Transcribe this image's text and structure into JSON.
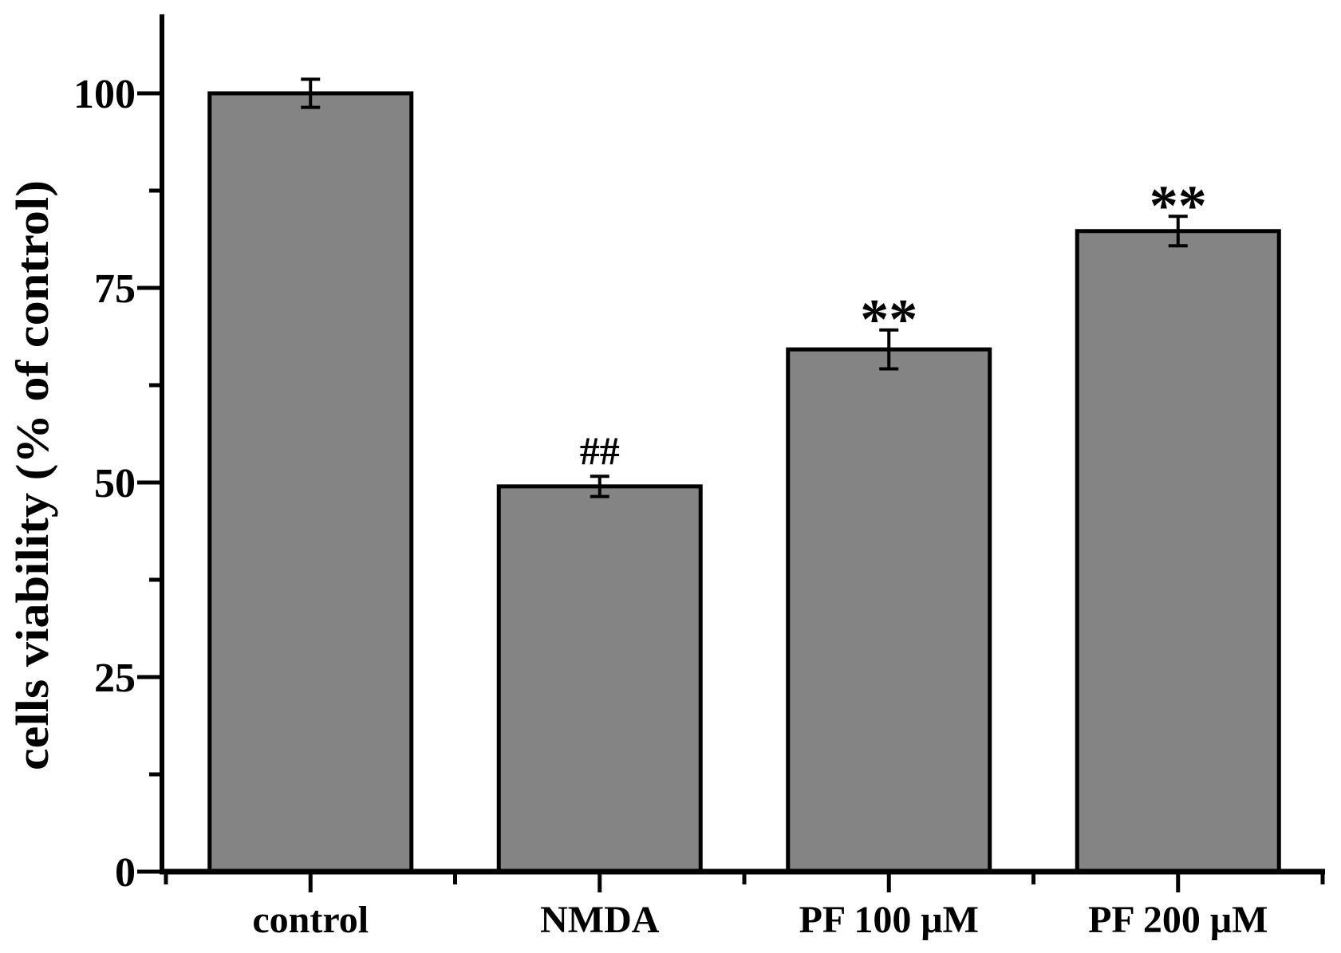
{
  "chart_data": {
    "type": "bar",
    "title": "",
    "xlabel": "",
    "ylabel": "cells viability (% of control)",
    "ylim": [
      0,
      110
    ],
    "yticks_major": [
      0,
      25,
      50,
      75,
      100
    ],
    "yticks_minor": [
      12.5,
      37.5,
      62.5,
      87.5
    ],
    "grid": "off",
    "legend": "none",
    "categories": [
      "control",
      "NMDA",
      "PF 100 μM",
      "PF 200 μM"
    ],
    "series": [
      {
        "name": "cells viability (% of control)",
        "values": [
          100,
          49.5,
          67.1,
          82.3
        ],
        "errors": [
          1.8,
          1.3,
          2.5,
          1.9
        ]
      }
    ],
    "annotations": [
      {
        "category": "control",
        "text": ""
      },
      {
        "category": "NMDA",
        "text": "##"
      },
      {
        "category": "PF 100 μM",
        "text": "**"
      },
      {
        "category": "PF 200 μM",
        "text": "**"
      }
    ],
    "colors": {
      "bar_fill": "#848484",
      "bar_stroke": "#000000",
      "axis": "#000000",
      "text": "#000000",
      "background": "#ffffff"
    }
  }
}
